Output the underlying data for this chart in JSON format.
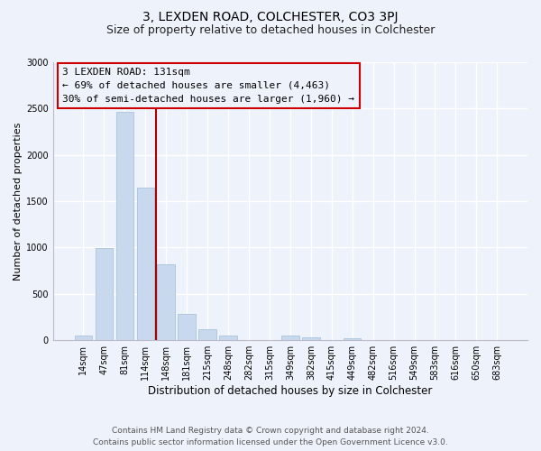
{
  "title": "3, LEXDEN ROAD, COLCHESTER, CO3 3PJ",
  "subtitle": "Size of property relative to detached houses in Colchester",
  "xlabel": "Distribution of detached houses by size in Colchester",
  "ylabel": "Number of detached properties",
  "bar_labels": [
    "14sqm",
    "47sqm",
    "81sqm",
    "114sqm",
    "148sqm",
    "181sqm",
    "215sqm",
    "248sqm",
    "282sqm",
    "315sqm",
    "349sqm",
    "382sqm",
    "415sqm",
    "449sqm",
    "482sqm",
    "516sqm",
    "549sqm",
    "583sqm",
    "616sqm",
    "650sqm",
    "683sqm"
  ],
  "bar_values": [
    50,
    990,
    2460,
    1650,
    820,
    280,
    120,
    50,
    0,
    0,
    55,
    35,
    0,
    25,
    0,
    0,
    0,
    0,
    0,
    0,
    0
  ],
  "bar_color": "#c9d9ed",
  "bar_edge_color": "#a8c4de",
  "ylim": [
    0,
    3000
  ],
  "yticks": [
    0,
    500,
    1000,
    1500,
    2000,
    2500,
    3000
  ],
  "vline_x_bar_idx": 3,
  "vline_color": "#aa0000",
  "annotation_title": "3 LEXDEN ROAD: 131sqm",
  "annotation_line1": "← 69% of detached houses are smaller (4,463)",
  "annotation_line2": "30% of semi-detached houses are larger (1,960) →",
  "annotation_box_color": "#cc0000",
  "footer_line1": "Contains HM Land Registry data © Crown copyright and database right 2024.",
  "footer_line2": "Contains public sector information licensed under the Open Government Licence v3.0.",
  "bg_color": "#eef2fb",
  "grid_color": "#ffffff",
  "title_fontsize": 10,
  "subtitle_fontsize": 9,
  "xlabel_fontsize": 8.5,
  "ylabel_fontsize": 8,
  "tick_fontsize": 7,
  "annot_fontsize": 8,
  "footer_fontsize": 6.5
}
